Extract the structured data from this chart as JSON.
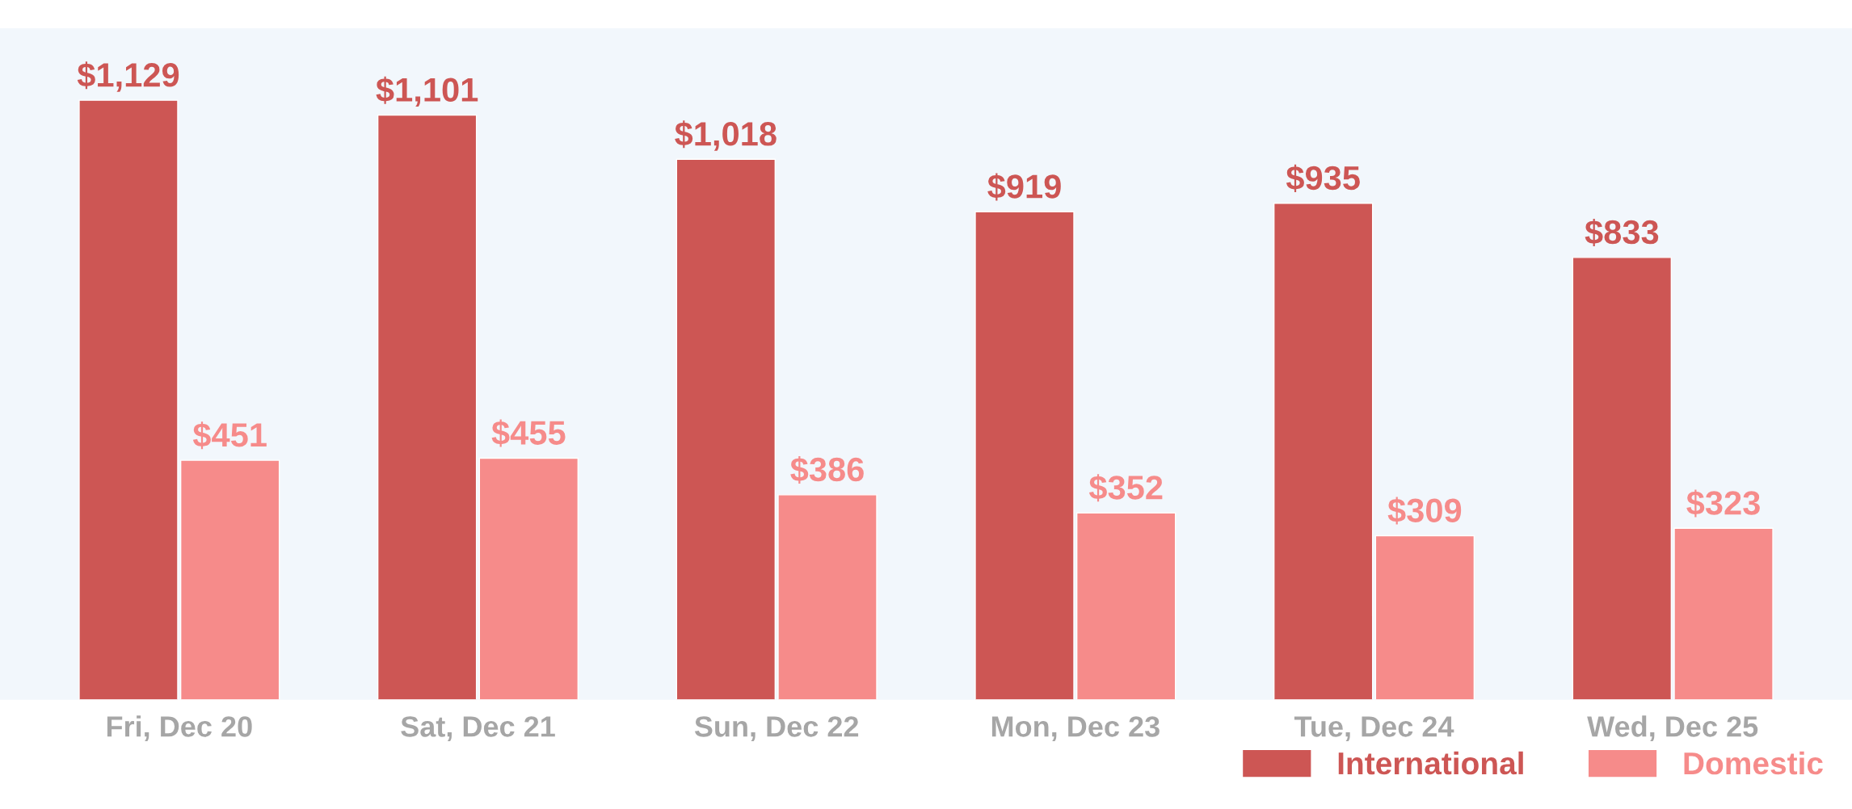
{
  "chart_data": {
    "type": "bar",
    "categories": [
      "Fri, Dec 20",
      "Sat, Dec 21",
      "Sun, Dec 22",
      "Mon, Dec 23",
      "Tue, Dec 24",
      "Wed, Dec 25"
    ],
    "series": [
      {
        "name": "International",
        "color": "#cd5654",
        "values": [
          1129,
          1101,
          1018,
          919,
          935,
          833
        ],
        "value_labels": [
          "$1,129",
          "$1,101",
          "$1,018",
          "$919",
          "$935",
          "$833"
        ]
      },
      {
        "name": "Domestic",
        "color": "#f68b8a",
        "values": [
          451,
          455,
          386,
          352,
          309,
          323
        ],
        "value_labels": [
          "$451",
          "$455",
          "$386",
          "$352",
          "$309",
          "$323"
        ]
      }
    ],
    "legend": "bottom right",
    "grid": false
  }
}
